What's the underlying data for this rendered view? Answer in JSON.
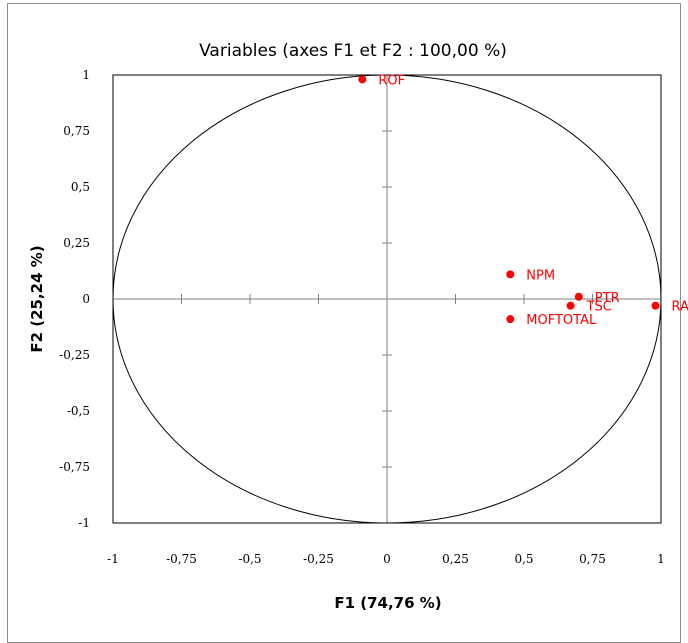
{
  "chart_data": {
    "type": "scatter",
    "title": "Variables (axes F1 et F2 : 100,00 %)",
    "xlabel": "F1 (74,76 %)",
    "ylabel": "F2 (25,24 %)",
    "xlim": [
      -1,
      1
    ],
    "ylim": [
      -1,
      1
    ],
    "xticks": [
      -1,
      -0.75,
      -0.5,
      -0.25,
      0,
      0.25,
      0.5,
      0.75,
      1
    ],
    "xtick_labels": [
      "-1",
      "-0,75",
      "-0,5",
      "-0,25",
      "0",
      "0,25",
      "0,5",
      "0,75",
      "1"
    ],
    "yticks": [
      1,
      0.75,
      0.5,
      0.25,
      0,
      -0.25,
      -0.5,
      -0.75,
      -1
    ],
    "ytick_labels": [
      "1",
      "0,75",
      "0,5",
      "0,25",
      "0",
      "-0,25",
      "-0,5",
      "-0,75",
      "-1"
    ],
    "circle": true,
    "grid": false,
    "point_color": "#ff0000",
    "points": [
      {
        "label": "ROF",
        "x": -0.09,
        "y": 0.98
      },
      {
        "label": "NPM",
        "x": 0.45,
        "y": 0.11
      },
      {
        "label": "PTR",
        "x": 0.7,
        "y": 0.01
      },
      {
        "label": "TSC",
        "x": 0.67,
        "y": -0.03
      },
      {
        "label": "RA",
        "x": 0.98,
        "y": -0.03
      },
      {
        "label": "MOFTOTAL",
        "x": 0.45,
        "y": -0.09
      }
    ]
  }
}
